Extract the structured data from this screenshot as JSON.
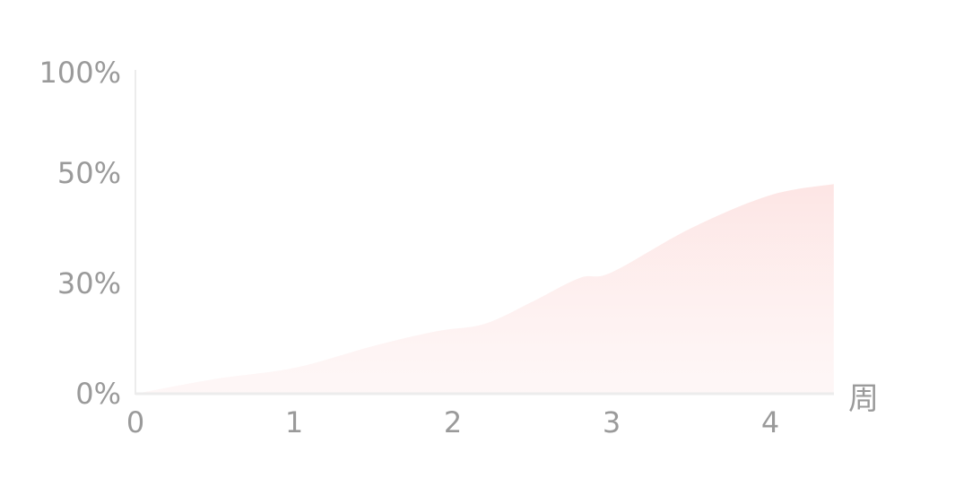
{
  "chart_data": {
    "type": "area",
    "title": "",
    "xlabel": "周",
    "ylabel": "",
    "x_ticks": [
      "0",
      "1",
      "2",
      "3",
      "4"
    ],
    "y_ticks": [
      {
        "label": "0%",
        "value": 0
      },
      {
        "label": "30%",
        "value": 30
      },
      {
        "label": "50%",
        "value": 50
      },
      {
        "label": "100%",
        "value": 100
      }
    ],
    "xlim": [
      0,
      4.4
    ],
    "y_scale": "non-uniform tick spacing (0%, 30%, 50%, 100%)",
    "grid": false,
    "series": [
      {
        "x": [
          0,
          0.5,
          1.0,
          1.5,
          1.9,
          2.2,
          2.5,
          2.8,
          3.0,
          3.5,
          4.0,
          4.4
        ],
        "y": [
          0,
          4,
          7,
          13,
          17,
          19,
          25,
          31,
          32,
          40,
          46,
          48
        ],
        "color": "#fde4e3"
      }
    ]
  }
}
